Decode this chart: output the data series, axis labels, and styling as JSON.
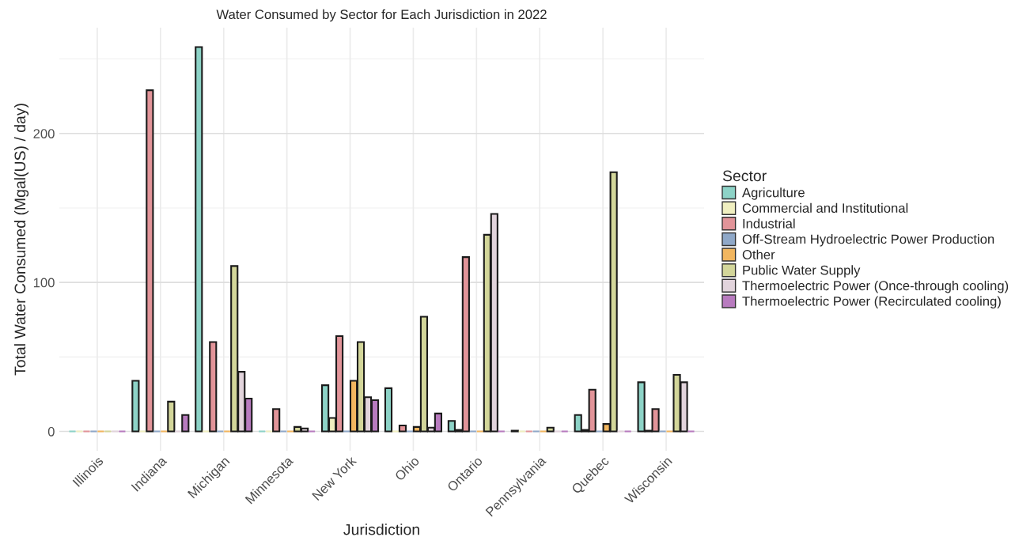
{
  "chart_data": {
    "type": "bar",
    "title": "Water Consumed by Sector for Each Jurisdiction in 2022",
    "xlabel": "Jurisdiction",
    "ylabel": "Total Water Consumed (Mgal(US) / day)",
    "legend_title": "Sector",
    "categories": [
      "Illinois",
      "Indiana",
      "Michigan",
      "Minnesota",
      "New York",
      "Ohio",
      "Ontario",
      "Pennsylvania",
      "Quebec",
      "Wisconsin"
    ],
    "series": [
      {
        "name": "Agriculture",
        "color": "#8dd3c7",
        "values": [
          0,
          34,
          258,
          0,
          31,
          29,
          7,
          0.5,
          11,
          33
        ]
      },
      {
        "name": "Commercial and Institutional",
        "color": "#f0efc0",
        "values": [
          0,
          0,
          0,
          0,
          9,
          0,
          1,
          0,
          1,
          0.5
        ]
      },
      {
        "name": "Industrial",
        "color": "#e29499",
        "values": [
          0,
          229,
          60,
          15,
          64,
          4,
          117,
          0,
          28,
          15
        ]
      },
      {
        "name": "Off-Stream Hydroelectric Power Production",
        "color": "#8fa8c8",
        "values": [
          0,
          0,
          0,
          0,
          0,
          0,
          0,
          0,
          0,
          0
        ]
      },
      {
        "name": "Other",
        "color": "#f2b65f",
        "values": [
          0,
          0,
          0,
          0,
          34,
          3,
          0,
          0,
          5,
          0
        ]
      },
      {
        "name": "Public Water Supply",
        "color": "#d3d69a",
        "values": [
          0,
          20,
          111,
          3,
          60,
          77,
          132,
          2.5,
          174,
          38
        ]
      },
      {
        "name": "Thermoelectric Power (Once-through cooling)",
        "color": "#e2d4dc",
        "values": [
          0,
          0,
          40,
          2,
          23,
          2.5,
          146,
          0,
          0,
          33
        ]
      },
      {
        "name": "Thermoelectric Power (Recirculated cooling)",
        "color": "#b87bbf",
        "values": [
          0,
          11,
          22,
          0,
          21,
          12,
          0,
          0,
          0,
          0
        ]
      }
    ],
    "ylim": [
      -13,
      271
    ],
    "yticks": [
      0,
      100,
      200
    ],
    "grid": true,
    "legend": "right"
  }
}
